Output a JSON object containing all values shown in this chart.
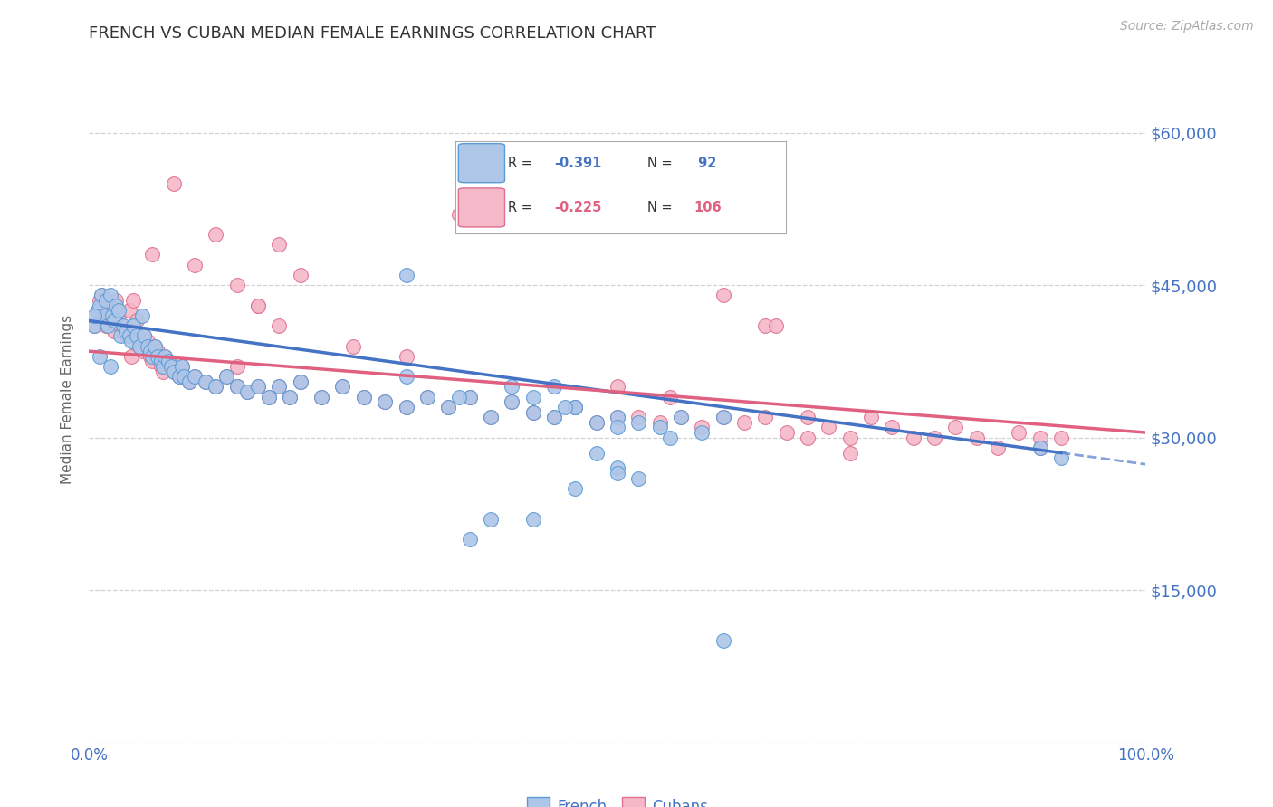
{
  "title": "FRENCH VS CUBAN MEDIAN FEMALE EARNINGS CORRELATION CHART",
  "source": "Source: ZipAtlas.com",
  "ylabel": "Median Female Earnings",
  "xlim": [
    0.0,
    1.0
  ],
  "ylim": [
    0,
    67500
  ],
  "yticks": [
    0,
    15000,
    30000,
    45000,
    60000
  ],
  "ytick_labels": [
    "",
    "$15,000",
    "$30,000",
    "$45,000",
    "$60,000"
  ],
  "french_R": -0.391,
  "french_N": 92,
  "cuban_R": -0.225,
  "cuban_N": 106,
  "french_color": "#aec6e8",
  "french_edge_color": "#5b9bd5",
  "cuban_color": "#f4b8c8",
  "cuban_edge_color": "#e07090",
  "french_line_color": "#4472c4",
  "cuban_line_color": "#e06080",
  "right_axis_color": "#4472c4",
  "grid_color": "#cccccc",
  "background_color": "#ffffff",
  "french_x": [
    0.005,
    0.008,
    0.01,
    0.012,
    0.015,
    0.016,
    0.018,
    0.02,
    0.022,
    0.024,
    0.025,
    0.028,
    0.03,
    0.032,
    0.035,
    0.038,
    0.04,
    0.042,
    0.045,
    0.048,
    0.05,
    0.052,
    0.055,
    0.058,
    0.06,
    0.062,
    0.065,
    0.068,
    0.07,
    0.072,
    0.075,
    0.078,
    0.08,
    0.085,
    0.088,
    0.09,
    0.095,
    0.1,
    0.11,
    0.12,
    0.13,
    0.14,
    0.15,
    0.16,
    0.17,
    0.18,
    0.19,
    0.2,
    0.22,
    0.24,
    0.26,
    0.28,
    0.3,
    0.32,
    0.34,
    0.36,
    0.38,
    0.4,
    0.42,
    0.44,
    0.46,
    0.48,
    0.5,
    0.52,
    0.54,
    0.56,
    0.58,
    0.6,
    0.44,
    0.46,
    0.3,
    0.35,
    0.4,
    0.45,
    0.5,
    0.55,
    0.42,
    0.005,
    0.01,
    0.02,
    0.5,
    0.52,
    0.48,
    0.5,
    0.46,
    0.6,
    0.9,
    0.92,
    0.36,
    0.38,
    0.42,
    0.3
  ],
  "french_y": [
    41000,
    42500,
    43000,
    44000,
    42000,
    43500,
    41000,
    44000,
    42000,
    41500,
    43000,
    42500,
    40000,
    41000,
    40500,
    40000,
    39500,
    41000,
    40000,
    39000,
    42000,
    40000,
    39000,
    38500,
    38000,
    39000,
    38000,
    37500,
    37000,
    38000,
    37500,
    37000,
    36500,
    36000,
    37000,
    36000,
    35500,
    36000,
    35500,
    35000,
    36000,
    35000,
    34500,
    35000,
    34000,
    35000,
    34000,
    35500,
    34000,
    35000,
    34000,
    33500,
    33000,
    34000,
    33000,
    34000,
    32000,
    33500,
    32500,
    32000,
    33000,
    31500,
    32000,
    31500,
    31000,
    32000,
    30500,
    32000,
    35000,
    33000,
    36000,
    34000,
    35000,
    33000,
    31000,
    30000,
    34000,
    42000,
    38000,
    37000,
    27000,
    26000,
    28500,
    26500,
    25000,
    10000,
    29000,
    28000,
    20000,
    22000,
    22000,
    46000
  ],
  "cuban_x": [
    0.005,
    0.008,
    0.01,
    0.012,
    0.015,
    0.016,
    0.018,
    0.02,
    0.022,
    0.024,
    0.025,
    0.028,
    0.03,
    0.032,
    0.035,
    0.038,
    0.04,
    0.042,
    0.045,
    0.048,
    0.05,
    0.052,
    0.055,
    0.058,
    0.06,
    0.062,
    0.065,
    0.068,
    0.07,
    0.072,
    0.075,
    0.078,
    0.08,
    0.085,
    0.088,
    0.09,
    0.095,
    0.1,
    0.11,
    0.12,
    0.13,
    0.14,
    0.15,
    0.16,
    0.17,
    0.18,
    0.19,
    0.2,
    0.22,
    0.24,
    0.26,
    0.28,
    0.3,
    0.32,
    0.34,
    0.36,
    0.38,
    0.4,
    0.42,
    0.44,
    0.46,
    0.48,
    0.5,
    0.52,
    0.54,
    0.56,
    0.58,
    0.6,
    0.62,
    0.64,
    0.66,
    0.68,
    0.7,
    0.72,
    0.74,
    0.76,
    0.78,
    0.8,
    0.82,
    0.84,
    0.86,
    0.88,
    0.9,
    0.92,
    0.06,
    0.08,
    0.1,
    0.12,
    0.14,
    0.16,
    0.18,
    0.2,
    0.25,
    0.3,
    0.35,
    0.14,
    0.16,
    0.18,
    0.6,
    0.64,
    0.68,
    0.72,
    0.5,
    0.55,
    0.9,
    0.65
  ],
  "cuban_y": [
    41000,
    42000,
    43500,
    44000,
    42500,
    41000,
    43000,
    42000,
    41500,
    40500,
    43500,
    42000,
    41000,
    40500,
    40000,
    42500,
    38000,
    43500,
    41500,
    39000,
    38500,
    40000,
    39500,
    38000,
    37500,
    39000,
    38500,
    37000,
    36500,
    38000,
    37500,
    37000,
    36500,
    36000,
    37000,
    36000,
    35500,
    36000,
    35500,
    35000,
    36000,
    35000,
    34500,
    35000,
    34000,
    35000,
    34000,
    35500,
    34000,
    35000,
    34000,
    33500,
    33000,
    34000,
    33000,
    34000,
    32000,
    33500,
    32500,
    32000,
    33000,
    31500,
    32000,
    32000,
    31500,
    32000,
    31000,
    32000,
    31500,
    32000,
    30500,
    32000,
    31000,
    30000,
    32000,
    31000,
    30000,
    30000,
    31000,
    30000,
    29000,
    30500,
    29000,
    30000,
    48000,
    55000,
    47000,
    50000,
    45000,
    43000,
    49000,
    46000,
    39000,
    38000,
    52000,
    37000,
    43000,
    41000,
    44000,
    41000,
    30000,
    28500,
    35000,
    34000,
    30000,
    41000
  ]
}
